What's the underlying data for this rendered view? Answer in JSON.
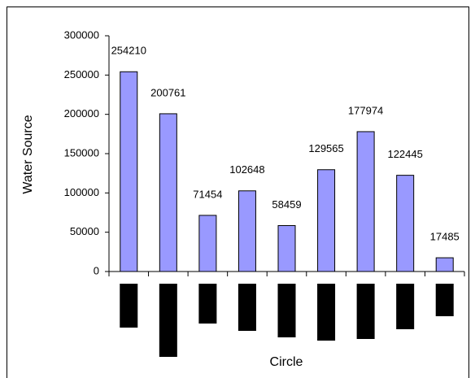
{
  "chart_data": {
    "type": "bar",
    "y_label": "Water Source",
    "x_label": "Circle",
    "categories": [
      null,
      null,
      null,
      null,
      null,
      null,
      null,
      null,
      null
    ],
    "values": [
      254210,
      200761,
      71454,
      102648,
      58459,
      129565,
      177974,
      122445,
      17485
    ],
    "color": "#9999ff",
    "ylim": [
      0,
      300000
    ],
    "yticks": [
      0,
      50000,
      100000,
      150000,
      200000,
      250000,
      300000
    ],
    "grid": false
  }
}
